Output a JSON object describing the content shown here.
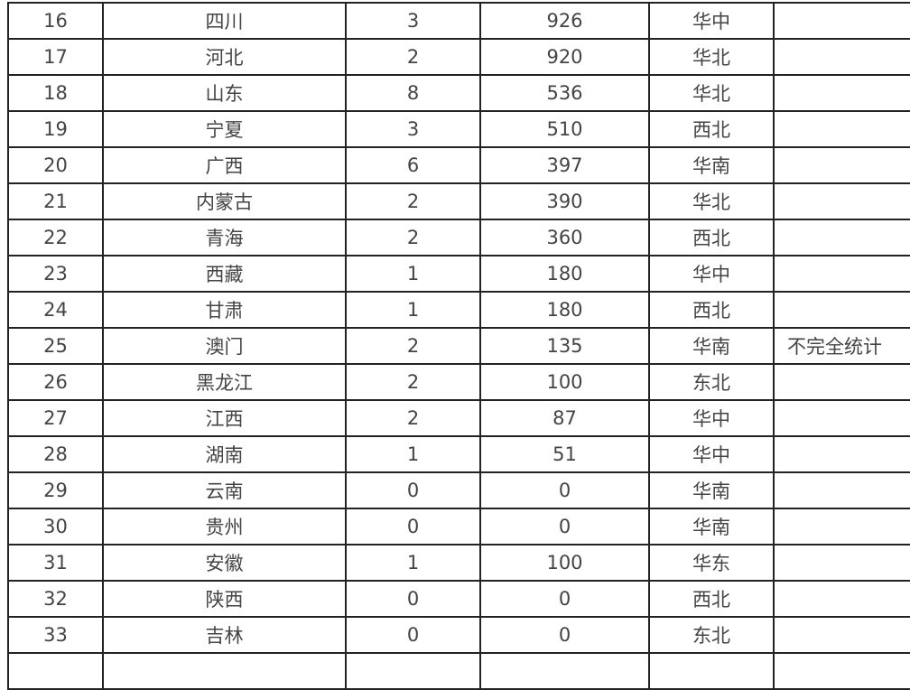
{
  "rows": [
    {
      "no": "16",
      "province": "四川",
      "count": "3",
      "value": "926",
      "region": "华中",
      "note": ""
    },
    {
      "no": "17",
      "province": "河北",
      "count": "2",
      "value": "920",
      "region": "华北",
      "note": ""
    },
    {
      "no": "18",
      "province": "山东",
      "count": "8",
      "value": "536",
      "region": "华北",
      "note": ""
    },
    {
      "no": "19",
      "province": "宁夏",
      "count": "3",
      "value": "510",
      "region": "西北",
      "note": ""
    },
    {
      "no": "20",
      "province": "广西",
      "count": "6",
      "value": "397",
      "region": "华南",
      "note": ""
    },
    {
      "no": "21",
      "province": "内蒙古",
      "count": "2",
      "value": "390",
      "region": "华北",
      "note": ""
    },
    {
      "no": "22",
      "province": "青海",
      "count": "2",
      "value": "360",
      "region": "西北",
      "note": ""
    },
    {
      "no": "23",
      "province": "西藏",
      "count": "1",
      "value": "180",
      "region": "华中",
      "note": ""
    },
    {
      "no": "24",
      "province": "甘肃",
      "count": "1",
      "value": "180",
      "region": "西北",
      "note": ""
    },
    {
      "no": "25",
      "province": "澳门",
      "count": "2",
      "value": "135",
      "region": "华南",
      "note": "不完全统计"
    },
    {
      "no": "26",
      "province": "黑龙江",
      "count": "2",
      "value": "100",
      "region": "东北",
      "note": ""
    },
    {
      "no": "27",
      "province": "江西",
      "count": "2",
      "value": "87",
      "region": "华中",
      "note": ""
    },
    {
      "no": "28",
      "province": "湖南",
      "count": "1",
      "value": "51",
      "region": "华中",
      "note": ""
    },
    {
      "no": "29",
      "province": "云南",
      "count": "0",
      "value": "0",
      "region": "华南",
      "note": ""
    },
    {
      "no": "30",
      "province": "贵州",
      "count": "0",
      "value": "0",
      "region": "华南",
      "note": ""
    },
    {
      "no": "31",
      "province": "安徽",
      "count": "1",
      "value": "100",
      "region": "华东",
      "note": ""
    },
    {
      "no": "32",
      "province": "陕西",
      "count": "0",
      "value": "0",
      "region": "西北",
      "note": ""
    },
    {
      "no": "33",
      "province": "吉林",
      "count": "0",
      "value": "0",
      "region": "东北",
      "note": ""
    }
  ]
}
